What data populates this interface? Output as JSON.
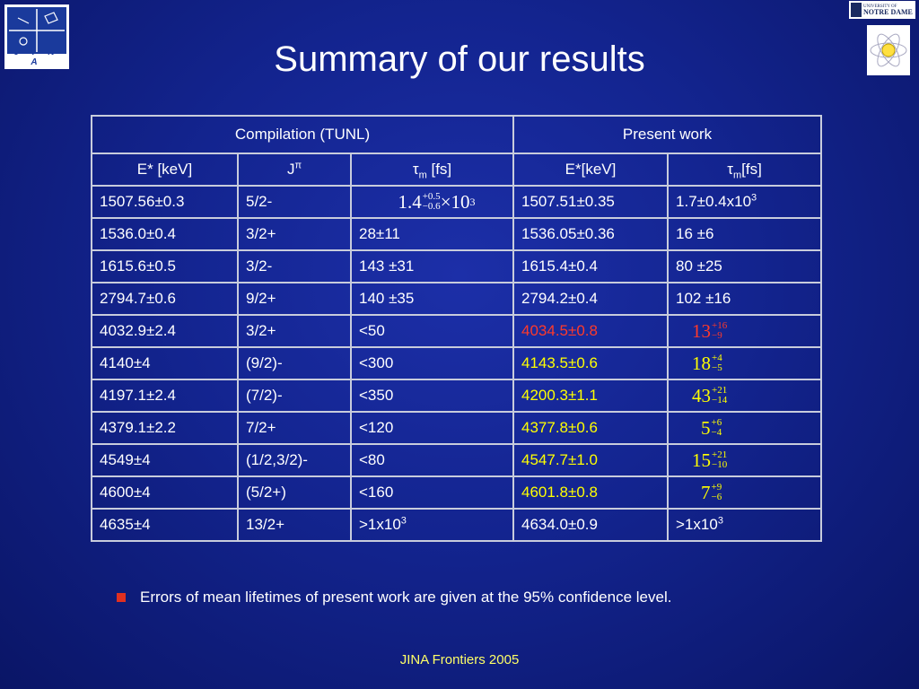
{
  "slide": {
    "title": "Summary of our results",
    "note": "Errors of mean lifetimes of present work are given at the 95% confidence level.",
    "footer": "JINA Frontiers 2005"
  },
  "logos": {
    "jina_text": "J I N A",
    "nd_line1": "UNIVERSITY OF",
    "nd_line2": "NOTRE DAME"
  },
  "table": {
    "group_headers": [
      "Compilation (TUNL)",
      "Present work"
    ],
    "col_headers": {
      "e_tunl": "E* [keV]",
      "j": "J",
      "j_sup": "π",
      "tau_t": "τ",
      "tau_t_sub": "m",
      "tau_t_unit": " [fs]",
      "e_pw": "E*[keV]",
      "tau_p": "τ",
      "tau_p_sub": "m",
      "tau_p_unit": "[fs]"
    },
    "rows": [
      {
        "e1": "1507.56±0.3",
        "j": "5/2-",
        "tau1_base": "1.4",
        "tau1_up": "+0.5",
        "tau1_dn": "−0.6",
        "tau1_mult": " ×10",
        "tau1_exp": "3",
        "e2": "1507.51±0.35",
        "tau2": " 1.7±0.4x10",
        "tau2_exp": "3"
      },
      {
        "e1": "1536.0±0.4",
        "j": "3/2+",
        "tau1": "28±11",
        "e2": "1536.05±0.36",
        "tau2": " 16 ±6"
      },
      {
        "e1": "1615.6±0.5",
        "j": "3/2-",
        "tau1": "143 ±31",
        "e2": "1615.4±0.4",
        "tau2": " 80 ±25"
      },
      {
        "e1": "2794.7±0.6",
        "j": "9/2+",
        "tau1": "140 ±35",
        "e2": "2794.2±0.4",
        "tau2": "102 ±16"
      },
      {
        "e1": "4032.9±2.4",
        "j": "3/2+",
        "tau1": "<50",
        "e2": "4034.5±0.8",
        "tau2_base": "13",
        "tau2_up": "+16",
        "tau2_dn": "−9"
      },
      {
        "e1": "4140±4",
        "j": "(9/2)-",
        "tau1": "<300",
        "e2": "4143.5±0.6",
        "tau2_base": "18",
        "tau2_up": "+4",
        "tau2_dn": "−5"
      },
      {
        "e1": "4197.1±2.4",
        "j": "(7/2)-",
        "tau1": "<350",
        "e2": "4200.3±1.1",
        "tau2_base": "43",
        "tau2_up": "+21",
        "tau2_dn": "−14"
      },
      {
        "e1": "4379.1±2.2",
        "j": "7/2+",
        "tau1": "<120",
        "e2": "4377.8±0.6",
        "tau2_base": "5",
        "tau2_up": "+6",
        "tau2_dn": "−4"
      },
      {
        "e1": "4549±4",
        "j": "(1/2,3/2)-",
        "tau1": "<80",
        "e2": "4547.7±1.0",
        "tau2_base": "15",
        "tau2_up": "+21",
        "tau2_dn": "−10"
      },
      {
        "e1": "4600±4",
        "j": "(5/2+)",
        "tau1": "<160",
        "e2": "4601.8±0.8",
        "tau2_base": "7",
        "tau2_up": "+9",
        "tau2_dn": "−6"
      },
      {
        "e1": "4635±4",
        "j": "13/2+",
        "tau1": ">1x10",
        "tau1_exp": "3",
        "e2": "4634.0±0.9",
        "tau2": ">1x10",
        "tau2_exp": "3"
      }
    ]
  },
  "colors": {
    "background": "#13248f",
    "highlight_red": "#ff3a2a",
    "highlight_yellow": "#ffff00",
    "footer": "#ffff66"
  }
}
